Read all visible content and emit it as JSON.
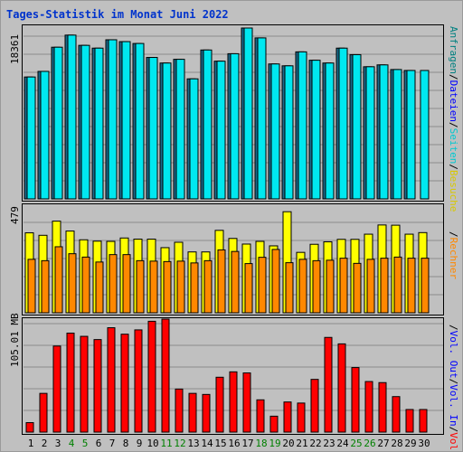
{
  "title": "Tages-Statistik im Monat Juni 2022",
  "colors": {
    "background": "#c0c0c0",
    "title": "#0033cc",
    "grid": "#8c8c8c",
    "anfragen": "#008080",
    "dateien": "#0000ff",
    "seiten": "#00e8f0",
    "besuche": "#ffff00",
    "rechner": "#ff8800",
    "vol_in": "#ff0000",
    "vol_out": "#0000ff",
    "weekend_tick": "#008000",
    "weekday_tick": "#000000"
  },
  "right_legend": {
    "top": [
      {
        "text": "Anfragen",
        "color": "#008080"
      },
      {
        "text": "/",
        "color": "#000000"
      },
      {
        "text": "Dateien",
        "color": "#0000ff"
      },
      {
        "text": "/",
        "color": "#000000"
      },
      {
        "text": "Seiten",
        "color": "#00c8d0"
      },
      {
        "text": "/",
        "color": "#000000"
      },
      {
        "text": "Besuche",
        "color": "#d8c800"
      }
    ],
    "middle": [
      {
        "text": "/",
        "color": "#000000"
      },
      {
        "text": "Rechner",
        "color": "#ff8800"
      }
    ],
    "bottom": [
      {
        "text": "/",
        "color": "#000000"
      },
      {
        "text": "Vol. Out",
        "color": "#0000ff"
      },
      {
        "text": "/",
        "color": "#000000"
      },
      {
        "text": "Vol. In",
        "color": "#0000ff"
      },
      {
        "text": "/",
        "color": "#000000"
      },
      {
        "text": "Volumen",
        "color": "#ff0000"
      }
    ]
  },
  "chart_data": [
    {
      "type": "bar",
      "title": "Tages-Statistik im Monat Juni 2022",
      "ylabel": "18361",
      "ylim": [
        0,
        18361
      ],
      "grid": true,
      "categories": [
        "1",
        "2",
        "3",
        "4",
        "5",
        "6",
        "7",
        "8",
        "9",
        "10",
        "11",
        "12",
        "13",
        "14",
        "15",
        "16",
        "17",
        "18",
        "19",
        "20",
        "21",
        "22",
        "23",
        "24",
        "25",
        "26",
        "27",
        "28",
        "29",
        "30"
      ],
      "weekend_days": [
        4,
        5,
        11,
        12,
        18,
        19,
        25,
        26
      ],
      "series": [
        {
          "name": "Anfragen",
          "values": [
            13100,
            13700,
            16300,
            17600,
            16500,
            16200,
            17100,
            16900,
            16700,
            15200,
            14600,
            15000,
            12900,
            16000,
            14800,
            15600,
            18361,
            17300,
            14500,
            14300,
            15800,
            14900,
            14600,
            16200,
            15500,
            14200,
            14400,
            13900,
            13800,
            0
          ]
        },
        {
          "name": "Dateien",
          "values": [
            0,
            0,
            0,
            0,
            0,
            0,
            0,
            0,
            0,
            0,
            0,
            0,
            0,
            0,
            0,
            0,
            0,
            0,
            0,
            0,
            0,
            0,
            0,
            0,
            0,
            0,
            0,
            0,
            0,
            0
          ]
        },
        {
          "name": "Seiten",
          "values": [
            13100,
            13700,
            16300,
            17600,
            16500,
            16200,
            17100,
            16900,
            16700,
            15200,
            14600,
            15000,
            12900,
            16000,
            14800,
            15600,
            18361,
            17300,
            14500,
            14300,
            15800,
            14900,
            14600,
            16200,
            15500,
            14200,
            14400,
            13900,
            13800,
            13800
          ]
        }
      ]
    },
    {
      "type": "bar",
      "ylabel": "479",
      "ylim": [
        0,
        479
      ],
      "grid": true,
      "categories": [
        "1",
        "2",
        "3",
        "4",
        "5",
        "6",
        "7",
        "8",
        "9",
        "10",
        "11",
        "12",
        "13",
        "14",
        "15",
        "16",
        "17",
        "18",
        "19",
        "20",
        "21",
        "22",
        "23",
        "24",
        "25",
        "26",
        "27",
        "28",
        "29",
        "30"
      ],
      "series": [
        {
          "name": "Besuche",
          "values": [
            356,
            345,
            408,
            364,
            325,
            319,
            318,
            333,
            328,
            328,
            290,
            314,
            271,
            271,
            367,
            331,
            306,
            318,
            298,
            450,
            269,
            305,
            316,
            327,
            327,
            350,
            391,
            390,
            350,
            357
          ]
        },
        {
          "name": "Rechner",
          "values": [
            238,
            232,
            294,
            263,
            248,
            226,
            259,
            259,
            232,
            230,
            228,
            230,
            222,
            232,
            280,
            273,
            219,
            247,
            282,
            223,
            238,
            232,
            234,
            243,
            220,
            238,
            243,
            248,
            243,
            243
          ]
        }
      ]
    },
    {
      "type": "bar",
      "ylabel": "105.01 MB",
      "ylim": [
        0,
        105.01
      ],
      "grid": true,
      "categories": [
        "1",
        "2",
        "3",
        "4",
        "5",
        "6",
        "7",
        "8",
        "9",
        "10",
        "11",
        "12",
        "13",
        "14",
        "15",
        "16",
        "17",
        "18",
        "19",
        "20",
        "21",
        "22",
        "23",
        "24",
        "25",
        "26",
        "27",
        "28",
        "29",
        "30"
      ],
      "series": [
        {
          "name": "Volumen",
          "values": [
            8.8,
            36.0,
            80.0,
            92.0,
            89.0,
            86.0,
            97.0,
            91.0,
            95.0,
            103.0,
            105.0,
            40.0,
            36.0,
            35.0,
            51.0,
            56.0,
            55.0,
            30.0,
            14.8,
            28.0,
            27.0,
            49.0,
            88.0,
            82.0,
            60.0,
            47.0,
            46.0,
            33.0,
            21.0,
            21.0
          ]
        },
        {
          "name": "Vol. In",
          "values": [
            0,
            0,
            0,
            0,
            0,
            0,
            0,
            0,
            0,
            0,
            0,
            0,
            0,
            0,
            0,
            0,
            0,
            0,
            0,
            0,
            0,
            0,
            0,
            0,
            0,
            0,
            0,
            0,
            0,
            0
          ]
        },
        {
          "name": "Vol. Out",
          "values": [
            0,
            0,
            0,
            0,
            0,
            0,
            0,
            0,
            0,
            0,
            0,
            0,
            0,
            0,
            0,
            0,
            0,
            0,
            0,
            0,
            0,
            0,
            0,
            0,
            0,
            0,
            0,
            0,
            0,
            0
          ]
        }
      ]
    }
  ]
}
